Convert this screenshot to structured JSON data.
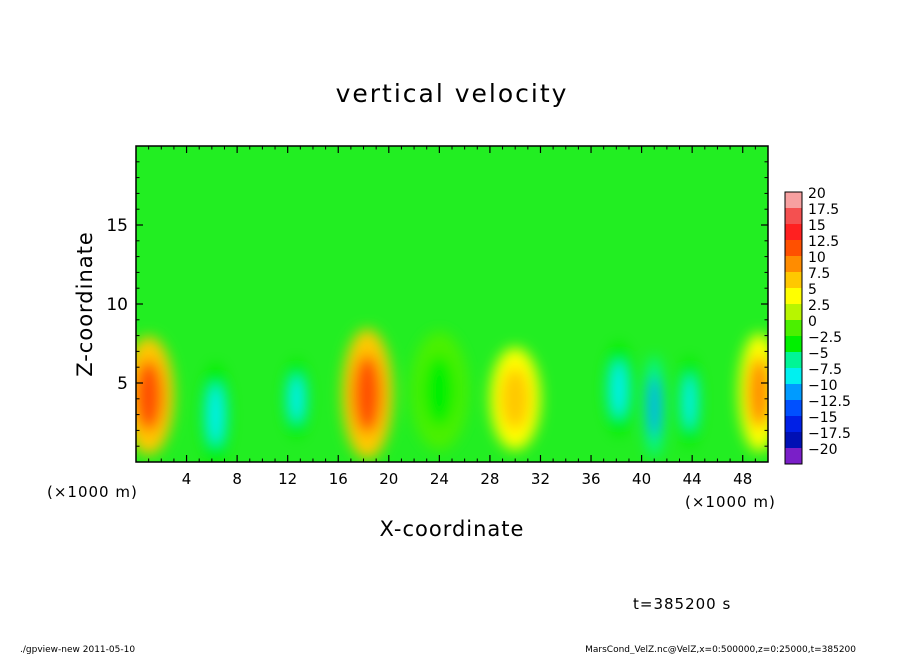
{
  "chart_data": {
    "type": "heatmap",
    "title": "vertical velocity",
    "xlabel": "X-coordinate",
    "ylabel": "Z-coordinate",
    "x_unit_label": "(×1000 m)",
    "x_unit_label_right": "(×1000 m)",
    "xlim": [
      0,
      50
    ],
    "ylim": [
      0,
      20
    ],
    "xticks": [
      4,
      8,
      12,
      16,
      20,
      24,
      28,
      32,
      36,
      40,
      44,
      48
    ],
    "yticks": [
      5,
      10,
      15
    ],
    "colorbar": {
      "levels": [
        20,
        17.5,
        15,
        12.5,
        10,
        7.5,
        5,
        2.5,
        0,
        -2.5,
        -5,
        -7.5,
        -10,
        -12.5,
        -15,
        -17.5,
        -20
      ],
      "colors": [
        "#f7a0a0",
        "#f45050",
        "#ff2020",
        "#ff5000",
        "#ff8c00",
        "#ffc800",
        "#ffff00",
        "#b8f500",
        "#4bf000",
        "#00f000",
        "#00f596",
        "#00f0f0",
        "#009bff",
        "#0050ff",
        "#0020e6",
        "#0010b4",
        "#7a1fc8"
      ]
    },
    "field_background": "#22ee22",
    "features": [
      {
        "x": 1.0,
        "z": 4.2,
        "value": 12.5,
        "sx": 1.6,
        "sz": 3.0
      },
      {
        "x": 6.3,
        "z": 3.0,
        "value": -7.5,
        "sx": 0.9,
        "sz": 2.6
      },
      {
        "x": 12.7,
        "z": 4.0,
        "value": -7.5,
        "sx": 0.8,
        "sz": 2.0
      },
      {
        "x": 18.3,
        "z": 4.3,
        "value": 12.5,
        "sx": 1.6,
        "sz": 3.3
      },
      {
        "x": 24.0,
        "z": 4.5,
        "value": -2.5,
        "sx": 1.8,
        "sz": 3.0
      },
      {
        "x": 30.0,
        "z": 4.0,
        "value": 7.5,
        "sx": 1.6,
        "sz": 2.6
      },
      {
        "x": 38.2,
        "z": 4.6,
        "value": -7.5,
        "sx": 0.9,
        "sz": 2.4
      },
      {
        "x": 41.0,
        "z": 3.5,
        "value": -10,
        "sx": 0.6,
        "sz": 2.6
      },
      {
        "x": 43.8,
        "z": 3.8,
        "value": -7.5,
        "sx": 0.7,
        "sz": 2.3
      },
      {
        "x": 49.3,
        "z": 4.4,
        "value": 10,
        "sx": 1.3,
        "sz": 3.0
      }
    ]
  },
  "footer": {
    "time_label": "t=385200 s",
    "left_note": "./gpview-new 2011-05-10",
    "right_note": "MarsCond_VelZ.nc@VelZ,x=0:500000,z=0:25000,t=385200"
  }
}
